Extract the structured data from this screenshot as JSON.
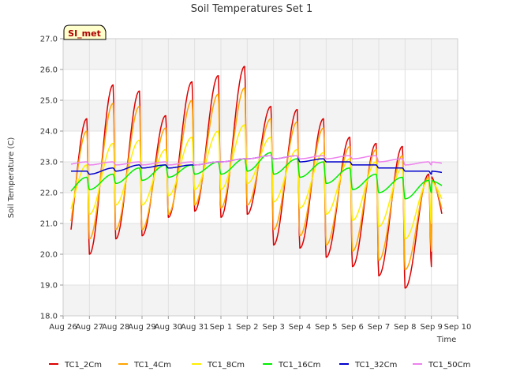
{
  "chart_data": {
    "type": "line",
    "title": "Soil Temperatures Set 1",
    "xlabel": "Time",
    "ylabel": "Soil Temperature (C)",
    "badge": "SI_met",
    "ylim": [
      18.0,
      27.0
    ],
    "yticks": [
      "18.0",
      "19.0",
      "20.0",
      "21.0",
      "22.0",
      "23.0",
      "24.0",
      "25.0",
      "26.0",
      "27.0"
    ],
    "xticks": [
      "Aug 26",
      "Aug 27",
      "Aug 28",
      "Aug 29",
      "Aug 30",
      "Aug 31",
      "Sep 1",
      "Sep 2",
      "Sep 3",
      "Sep 4",
      "Sep 5",
      "Sep 6",
      "Sep 7",
      "Sep 8",
      "Sep 9",
      "Sep 10"
    ],
    "x_day_start": 0,
    "x_day_end": 15,
    "data_day_start": 0.3,
    "data_day_end": 14.4,
    "grid": true,
    "legend_position": "bottom",
    "daily_peak_day": [
      0.9,
      1.9,
      2.9,
      3.9,
      4.9,
      5.9,
      6.9,
      7.9,
      8.9,
      9.9,
      10.9,
      11.9,
      12.9,
      13.9
    ],
    "series": [
      {
        "name": "TC1_2Cm",
        "color": "#dd0000",
        "mins": [
          19.6,
          20.0,
          20.5,
          20.6,
          21.2,
          21.4,
          21.2,
          21.3,
          20.3,
          20.2,
          19.9,
          19.6,
          19.3,
          18.9,
          19.6
        ],
        "peaks": [
          24.4,
          25.5,
          25.3,
          24.5,
          25.6,
          25.8,
          26.1,
          24.8,
          24.7,
          24.4,
          23.8,
          23.6,
          23.5,
          22.6
        ]
      },
      {
        "name": "TC1_4Cm",
        "color": "#ffa500",
        "mins": [
          20.1,
          20.5,
          20.8,
          20.8,
          21.3,
          21.6,
          21.5,
          21.6,
          20.8,
          20.6,
          20.3,
          20.1,
          19.8,
          19.5,
          20.1
        ],
        "peaks": [
          24.0,
          24.9,
          24.8,
          24.1,
          25.0,
          25.2,
          25.4,
          24.4,
          24.3,
          24.1,
          23.5,
          23.4,
          23.2,
          22.5
        ]
      },
      {
        "name": "TC1_8Cm",
        "color": "#ffee00",
        "mins": [
          21.0,
          21.3,
          21.6,
          21.6,
          21.9,
          22.1,
          22.1,
          22.3,
          21.7,
          21.5,
          21.3,
          21.1,
          20.9,
          20.5,
          21.0
        ],
        "peaks": [
          22.9,
          23.6,
          23.7,
          23.4,
          23.8,
          24.0,
          24.2,
          23.8,
          23.4,
          23.3,
          23.1,
          23.0,
          22.8,
          22.4
        ]
      },
      {
        "name": "TC1_16Cm",
        "color": "#00ee00",
        "mins": [
          21.9,
          22.1,
          22.3,
          22.4,
          22.5,
          22.6,
          22.6,
          22.7,
          22.6,
          22.5,
          22.3,
          22.1,
          22.0,
          21.8,
          22.0
        ],
        "peaks": [
          22.5,
          22.6,
          22.8,
          22.9,
          22.9,
          23.0,
          23.1,
          23.3,
          23.1,
          23.0,
          22.8,
          22.6,
          22.5,
          22.4
        ]
      },
      {
        "name": "TC1_32Cm",
        "color": "#0000cc",
        "mins": [
          22.7,
          22.6,
          22.7,
          22.8,
          22.8,
          22.9,
          23.0,
          23.1,
          23.1,
          23.0,
          23.0,
          22.9,
          22.8,
          22.7,
          22.6
        ],
        "peaks": [
          22.7,
          22.8,
          22.9,
          22.9,
          22.9,
          23.0,
          23.1,
          23.2,
          23.2,
          23.1,
          23.0,
          22.9,
          22.8,
          22.7
        ]
      },
      {
        "name": "TC1_50Cm",
        "color": "#ee82ee",
        "mins": [
          22.9,
          22.9,
          22.9,
          22.9,
          22.9,
          22.9,
          23.0,
          23.1,
          23.1,
          23.1,
          23.1,
          23.1,
          23.0,
          22.9,
          22.9
        ],
        "peaks": [
          23.0,
          23.0,
          23.0,
          23.0,
          23.0,
          23.0,
          23.1,
          23.2,
          23.2,
          23.2,
          23.2,
          23.2,
          23.1,
          23.0
        ]
      }
    ]
  }
}
